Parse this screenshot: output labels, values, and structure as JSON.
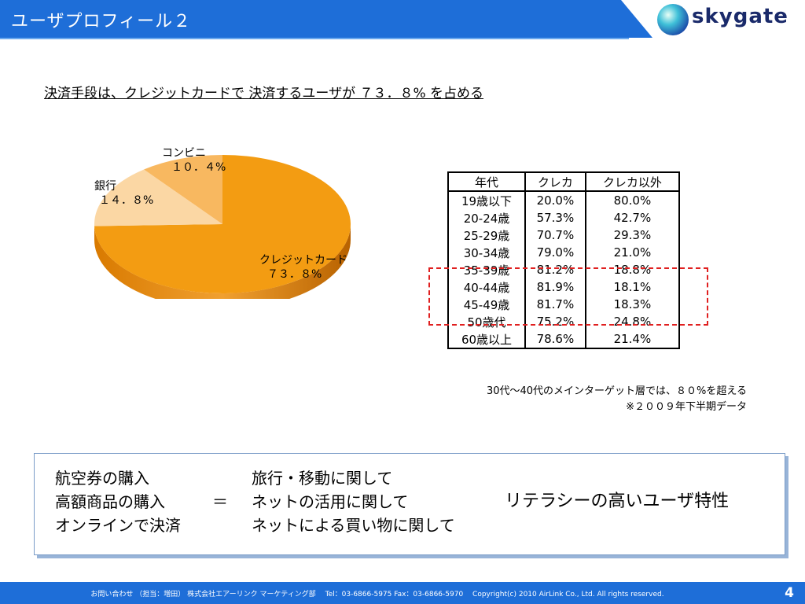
{
  "header": {
    "title": "ユーザプロフィール２",
    "logo_text": "skygate"
  },
  "headline": "決済手段は、クレジットカードで 決済するユーザが ７３．８% を占める",
  "pie": {
    "slices": [
      {
        "label": "クレジットカード",
        "value_text": "７３．８%",
        "value": 73.8,
        "color": "#f39c12"
      },
      {
        "label": "銀行",
        "value_text": "１４．８%",
        "value": 14.8,
        "color": "#fbd7a4"
      },
      {
        "label": "コンビニ",
        "value_text": "１０．４%",
        "value": 10.4,
        "color": "#f8b860"
      }
    ]
  },
  "table": {
    "headers": [
      "年代",
      "クレカ",
      "クレカ以外"
    ],
    "rows": [
      [
        "19歳以下",
        "20.0%",
        "80.0%"
      ],
      [
        "20-24歳",
        "57.3%",
        "42.7%"
      ],
      [
        "25-29歳",
        "70.7%",
        "29.3%"
      ],
      [
        "30-34歳",
        "79.0%",
        "21.0%"
      ],
      [
        "35-39歳",
        "81.2%",
        "18.8%"
      ],
      [
        "40-44歳",
        "81.9%",
        "18.1%"
      ],
      [
        "45-49歳",
        "81.7%",
        "18.3%"
      ],
      [
        "50歳代",
        "75.2%",
        "24.8%"
      ],
      [
        "60歳以上",
        "78.6%",
        "21.4%"
      ]
    ]
  },
  "notes": {
    "line1": "30代～40代のメインターゲット層では、８０%を超える",
    "line2": "※２００９年下半期データ"
  },
  "summary": {
    "left": [
      "航空券の購入",
      "高額商品の購入",
      "オンラインで決済"
    ],
    "equals": "＝",
    "middle": [
      "旅行・移動に関して",
      "ネットの活用に関して",
      "ネットによる買い物に関して"
    ],
    "right": "リテラシーの高いユーザ特性"
  },
  "footer": {
    "text": "お問い合わせ （担当：増田） 株式会社エアーリンク マーケティング部　 Tel：03-6866-5975 Fax：03-6866-5970　 Copyright(c) 2010 AirLink Co., Ltd. All rights reserved.",
    "page": "4"
  }
}
